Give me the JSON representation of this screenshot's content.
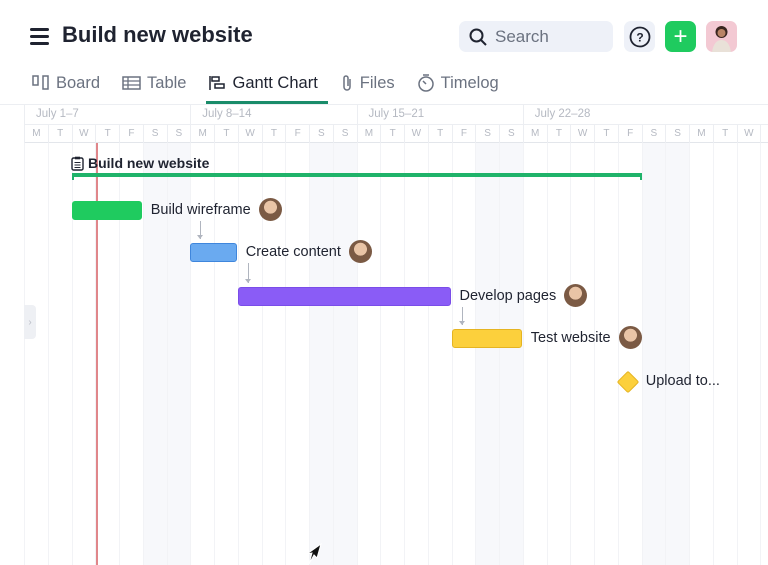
{
  "header": {
    "title": "Build new website",
    "search_placeholder": "Search",
    "help_icon": "question-circle-icon",
    "add_icon": "plus-icon",
    "accent": "#1fcb5f"
  },
  "tabs": [
    {
      "label": "Board",
      "icon": "board-icon",
      "active": false
    },
    {
      "label": "Table",
      "icon": "table-icon",
      "active": false
    },
    {
      "label": "Gantt Chart",
      "icon": "gantt-icon",
      "active": true
    },
    {
      "label": "Files",
      "icon": "paperclip-icon",
      "active": false
    },
    {
      "label": "Timelog",
      "icon": "stopwatch-icon",
      "active": false
    }
  ],
  "timeline": {
    "weeks": [
      "July 1–7",
      "July 8–14",
      "July 15–21",
      "July 22–28"
    ],
    "day_letters": [
      "M",
      "T",
      "W",
      "T",
      "F",
      "S",
      "S"
    ],
    "today": "July 4"
  },
  "project": {
    "name": "Build new website",
    "start": "July 3",
    "end": "July 27",
    "color": "#1fb36a"
  },
  "tasks": [
    {
      "name": "Build wireframe",
      "start": 3,
      "end": 5,
      "color": "#1fcb5f",
      "border": "#1fcb5f"
    },
    {
      "name": "Create content",
      "start": 8,
      "end": 9,
      "color": "#6aaaf0",
      "border": "#3f86dc"
    },
    {
      "name": "Develop pages",
      "start": 10,
      "end": 18,
      "color": "#8a5cf6",
      "border": "#7a4de8"
    },
    {
      "name": "Test website",
      "start": 19,
      "end": 21,
      "color": "#fcd03c",
      "border": "#e5b422"
    }
  ],
  "milestone": {
    "name": "Upload to...",
    "date": 26,
    "color": "#fcd03c"
  }
}
